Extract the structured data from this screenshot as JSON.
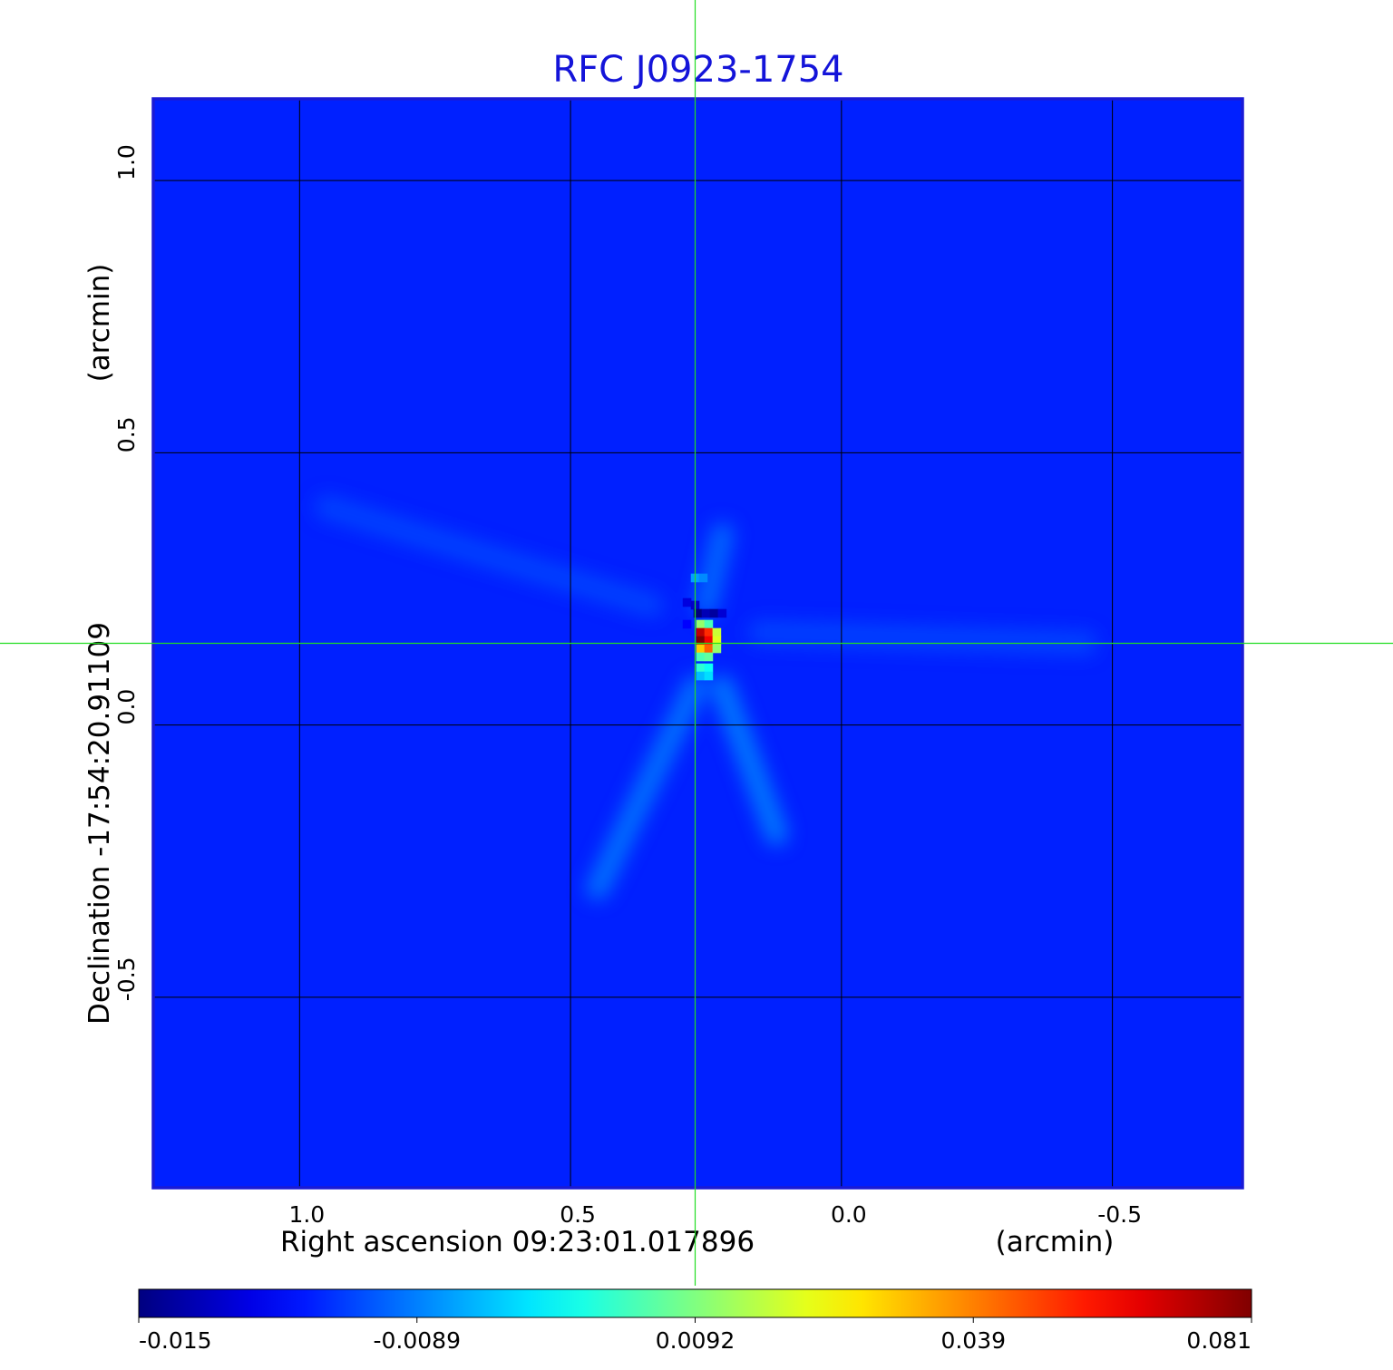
{
  "chart_data": {
    "type": "heatmap",
    "title": "RFC J0923-1754",
    "xlabel": "Right ascension  09:23:01.017896",
    "xunit": "(arcmin)",
    "ylabel": "Declination  -17:54:20.91109",
    "yunit": "(arcmin)",
    "xlim": [
      1.27,
      -0.74
    ],
    "ylim": [
      -0.85,
      1.15
    ],
    "x_ticks": [
      1.0,
      0.5,
      0.0,
      -0.5
    ],
    "x_tick_labels": [
      "1.0",
      "0.5",
      "0.0",
      "-0.5"
    ],
    "y_ticks": [
      1.0,
      0.5,
      0.0,
      -0.5
    ],
    "y_tick_labels": [
      "1.0",
      "0.5",
      "0.0",
      "-0.5"
    ],
    "grid": true,
    "crosshair": {
      "x": 0.27,
      "y": 0.15,
      "color": "#22dd22"
    },
    "colormap": "jet",
    "colorbar": {
      "range": [
        -0.015,
        0.081
      ],
      "ticks": [
        -0.015,
        -0.0089,
        0.0092,
        0.039,
        0.081
      ],
      "tick_labels": [
        "-0.015",
        "-0.0089",
        "0.0092",
        "0.039",
        "0.081"
      ]
    },
    "background_level": 0.0,
    "pixels": [
      {
        "x": 0.285,
        "y": 0.225,
        "value": -0.006
      },
      {
        "x": 0.27,
        "y": 0.22,
        "value": -0.008
      },
      {
        "x": 0.265,
        "y": 0.205,
        "value": -0.015
      },
      {
        "x": 0.25,
        "y": 0.205,
        "value": -0.01
      },
      {
        "x": 0.235,
        "y": 0.205,
        "value": -0.012
      },
      {
        "x": 0.22,
        "y": 0.205,
        "value": -0.007
      },
      {
        "x": 0.285,
        "y": 0.185,
        "value": -0.003
      },
      {
        "x": 0.26,
        "y": 0.185,
        "value": 0.035
      },
      {
        "x": 0.245,
        "y": 0.185,
        "value": 0.028
      },
      {
        "x": 0.26,
        "y": 0.17,
        "value": 0.075
      },
      {
        "x": 0.245,
        "y": 0.17,
        "value": 0.065
      },
      {
        "x": 0.23,
        "y": 0.17,
        "value": 0.04
      },
      {
        "x": 0.26,
        "y": 0.155,
        "value": 0.081
      },
      {
        "x": 0.245,
        "y": 0.155,
        "value": 0.07
      },
      {
        "x": 0.23,
        "y": 0.155,
        "value": 0.042
      },
      {
        "x": 0.26,
        "y": 0.14,
        "value": 0.05
      },
      {
        "x": 0.245,
        "y": 0.14,
        "value": 0.06
      },
      {
        "x": 0.23,
        "y": 0.14,
        "value": 0.035
      },
      {
        "x": 0.26,
        "y": 0.125,
        "value": 0.028
      },
      {
        "x": 0.245,
        "y": 0.125,
        "value": 0.03
      },
      {
        "x": 0.26,
        "y": 0.105,
        "value": 0.025
      },
      {
        "x": 0.245,
        "y": 0.105,
        "value": 0.022
      },
      {
        "x": 0.26,
        "y": 0.09,
        "value": 0.015
      },
      {
        "x": 0.245,
        "y": 0.09,
        "value": 0.018
      },
      {
        "x": 0.27,
        "y": 0.27,
        "value": 0.012
      },
      {
        "x": 0.255,
        "y": 0.27,
        "value": 0.01
      }
    ],
    "features": [
      {
        "kind": "streak",
        "from": [
          0.27,
          0.07
        ],
        "to": [
          0.45,
          -0.3
        ],
        "value": 0.009
      },
      {
        "kind": "streak",
        "from": [
          0.22,
          0.07
        ],
        "to": [
          0.12,
          -0.2
        ],
        "value": 0.01
      },
      {
        "kind": "streak",
        "from": [
          0.25,
          0.22
        ],
        "to": [
          0.22,
          0.35
        ],
        "value": 0.008
      },
      {
        "kind": "streak",
        "from": [
          0.35,
          0.22
        ],
        "to": [
          0.95,
          0.4
        ],
        "value": 0.004
      },
      {
        "kind": "streak",
        "from": [
          0.15,
          0.17
        ],
        "to": [
          -0.45,
          0.15
        ],
        "value": 0.004
      }
    ]
  }
}
